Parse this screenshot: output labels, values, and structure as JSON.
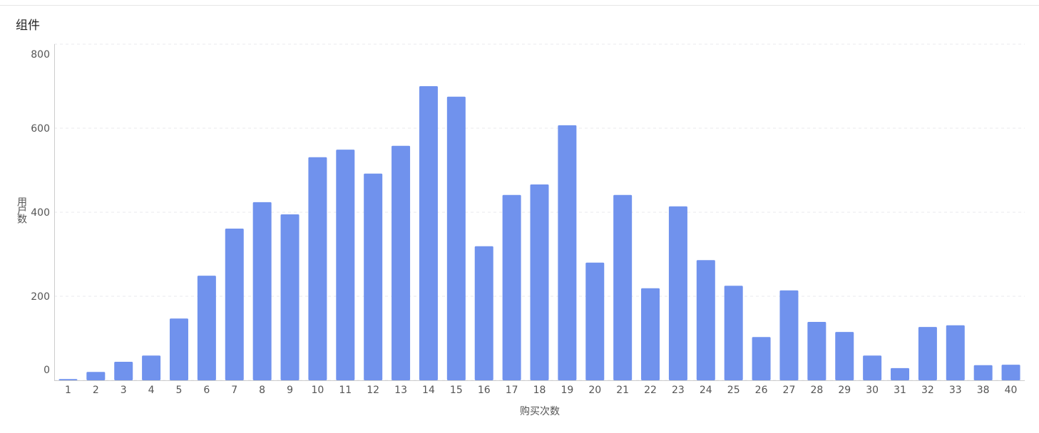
{
  "chart_data": {
    "type": "bar",
    "title": "组件",
    "x_label": "购买次数",
    "y_label": "用户数",
    "categories": [
      "1",
      "2",
      "3",
      "4",
      "5",
      "6",
      "7",
      "8",
      "9",
      "10",
      "11",
      "12",
      "13",
      "14",
      "15",
      "16",
      "17",
      "18",
      "19",
      "20",
      "21",
      "22",
      "23",
      "24",
      "25",
      "26",
      "27",
      "28",
      "29",
      "30",
      "31",
      "32",
      "33",
      "38",
      "40"
    ],
    "values": [
      3,
      20,
      44,
      59,
      147,
      249,
      361,
      424,
      395,
      531,
      549,
      492,
      558,
      700,
      675,
      319,
      441,
      466,
      607,
      280,
      441,
      219,
      414,
      286,
      225,
      103,
      214,
      139,
      115,
      59,
      29,
      127,
      131,
      36,
      37
    ],
    "color": "#7092ed",
    "ylim": [
      0,
      800
    ],
    "yticks": [
      0,
      200,
      400,
      600,
      800
    ],
    "grid": true
  }
}
